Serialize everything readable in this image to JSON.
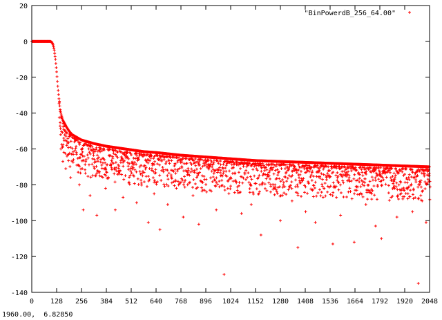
{
  "status_readout": "1960.00,  6.82850",
  "chart_data": {
    "type": "scatter",
    "title": "",
    "xlabel": "",
    "ylabel": "",
    "xlim": [
      0,
      2048
    ],
    "ylim": [
      -140,
      20
    ],
    "xticks": [
      0,
      128,
      256,
      384,
      512,
      640,
      768,
      896,
      1024,
      1152,
      1280,
      1408,
      1536,
      1664,
      1792,
      1920,
      2048
    ],
    "yticks": [
      20,
      0,
      -20,
      -40,
      -60,
      -80,
      -100,
      -120,
      -140
    ],
    "grid": false,
    "legend": {
      "placement": "top-right",
      "entries": [
        "\"BinPowerdB_256_64.00\""
      ]
    },
    "marker": "+",
    "series": [
      {
        "name": "\"BinPowerdB_256_64.00\"",
        "color": "#ff0000",
        "description": "passband at 0 dB up to ~100, steep rolloff to about -40 by ~150, upper envelope decaying to about -70 at 2048 with scattered nulls below",
        "x": [
          0,
          20,
          40,
          60,
          80,
          96,
          104,
          110,
          116,
          122,
          128,
          134,
          140,
          146,
          152,
          160,
          170,
          180,
          192,
          208,
          224,
          256,
          288,
          320,
          384,
          448,
          512,
          576,
          640,
          768,
          896,
          1024,
          1152,
          1280,
          1408,
          1536,
          1664,
          1792,
          1920,
          2048
        ],
        "y": [
          0,
          0,
          0,
          0,
          0,
          0,
          -0.5,
          -2,
          -5,
          -10,
          -17,
          -25,
          -32,
          -38,
          -41,
          -44,
          -46,
          -48,
          -50,
          -52,
          -53,
          -55,
          -56,
          -57,
          -58.5,
          -59.5,
          -60.5,
          -61.5,
          -62,
          -63.5,
          -64.5,
          -65.5,
          -66.5,
          -67,
          -67.5,
          -68,
          -68.5,
          -69,
          -69.5,
          -70
        ]
      }
    ],
    "scatter_points": [
      [
        150,
        -60
      ],
      [
        160,
        -67
      ],
      [
        165,
        -54
      ],
      [
        175,
        -71
      ],
      [
        180,
        -58
      ],
      [
        190,
        -63
      ],
      [
        200,
        -76
      ],
      [
        215,
        -66
      ],
      [
        230,
        -62
      ],
      [
        245,
        -80
      ],
      [
        260,
        -71
      ],
      [
        265,
        -94
      ],
      [
        280,
        -66
      ],
      [
        300,
        -86
      ],
      [
        320,
        -70
      ],
      [
        335,
        -97
      ],
      [
        350,
        -75
      ],
      [
        380,
        -82
      ],
      [
        420,
        -68
      ],
      [
        430,
        -94
      ],
      [
        470,
        -87
      ],
      [
        500,
        -79
      ],
      [
        540,
        -90
      ],
      [
        560,
        -74
      ],
      [
        600,
        -101
      ],
      [
        630,
        -85
      ],
      [
        660,
        -105
      ],
      [
        700,
        -91
      ],
      [
        740,
        -78
      ],
      [
        780,
        -98
      ],
      [
        830,
        -86
      ],
      [
        860,
        -102
      ],
      [
        900,
        -84
      ],
      [
        950,
        -94
      ],
      [
        990,
        -130
      ],
      [
        1010,
        -78
      ],
      [
        1080,
        -96
      ],
      [
        1130,
        -91
      ],
      [
        1180,
        -108
      ],
      [
        1230,
        -84
      ],
      [
        1280,
        -100
      ],
      [
        1340,
        -89
      ],
      [
        1370,
        -115
      ],
      [
        1410,
        -95
      ],
      [
        1460,
        -101
      ],
      [
        1500,
        -87
      ],
      [
        1550,
        -113
      ],
      [
        1590,
        -97
      ],
      [
        1630,
        -84
      ],
      [
        1660,
        -112
      ],
      [
        1720,
        -91
      ],
      [
        1770,
        -103
      ],
      [
        1800,
        -110
      ],
      [
        1850,
        -87
      ],
      [
        1880,
        -98
      ],
      [
        1960,
        -95
      ],
      [
        1990,
        -135
      ],
      [
        2010,
        -89
      ],
      [
        2030,
        -101
      ],
      [
        2045,
        -78
      ]
    ]
  }
}
